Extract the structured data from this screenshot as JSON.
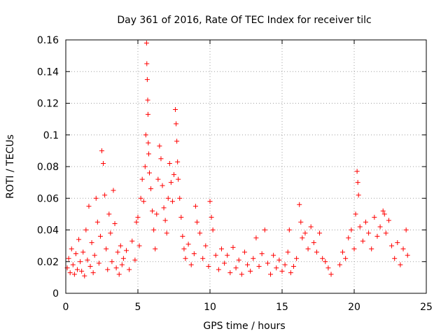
{
  "chart_data": {
    "type": "scatter",
    "title": "Day 361 of 2016, Rate Of TEC Index for receiver tilc",
    "xlabel": "GPS time / hours",
    "ylabel": "ROTI / TECUs",
    "xlim": [
      0,
      25
    ],
    "ylim": [
      0,
      0.16
    ],
    "xticks": [
      0,
      5,
      10,
      15,
      20,
      25
    ],
    "xtick_labels": [
      "0",
      "5",
      "10",
      "15",
      "20",
      "25"
    ],
    "yticks": [
      0,
      0.02,
      0.04,
      0.06,
      0.08,
      0.1,
      0.12,
      0.14,
      0.16
    ],
    "ytick_labels": [
      "0",
      "0.02",
      "0.04",
      "0.06",
      "0.08",
      "0.1",
      "0.12",
      "0.14",
      "0.16"
    ],
    "grid": true,
    "marker": "plus",
    "color": "#ff0000",
    "series": [
      {
        "name": "ROTI",
        "points": [
          [
            0.1,
            0.016
          ],
          [
            0.2,
            0.022
          ],
          [
            0.3,
            0.013
          ],
          [
            0.4,
            0.028
          ],
          [
            0.5,
            0.018
          ],
          [
            0.6,
            0.012
          ],
          [
            0.7,
            0.025
          ],
          [
            0.8,
            0.015
          ],
          [
            0.9,
            0.034
          ],
          [
            1.0,
            0.02
          ],
          [
            1.1,
            0.014
          ],
          [
            1.2,
            0.026
          ],
          [
            1.3,
            0.011
          ],
          [
            1.4,
            0.04
          ],
          [
            1.5,
            0.021
          ],
          [
            1.6,
            0.055
          ],
          [
            1.7,
            0.017
          ],
          [
            1.8,
            0.032
          ],
          [
            1.9,
            0.013
          ],
          [
            2.0,
            0.024
          ],
          [
            2.1,
            0.06
          ],
          [
            2.2,
            0.045
          ],
          [
            2.3,
            0.019
          ],
          [
            2.4,
            0.036
          ],
          [
            2.5,
            0.09
          ],
          [
            2.6,
            0.082
          ],
          [
            2.7,
            0.062
          ],
          [
            2.8,
            0.028
          ],
          [
            2.9,
            0.015
          ],
          [
            3.0,
            0.05
          ],
          [
            3.1,
            0.038
          ],
          [
            3.2,
            0.02
          ],
          [
            3.3,
            0.065
          ],
          [
            3.4,
            0.044
          ],
          [
            3.5,
            0.016
          ],
          [
            3.6,
            0.026
          ],
          [
            3.7,
            0.012
          ],
          [
            3.8,
            0.03
          ],
          [
            3.9,
            0.018
          ],
          [
            4.0,
            0.022
          ],
          [
            4.2,
            0.027
          ],
          [
            4.4,
            0.015
          ],
          [
            4.6,
            0.033
          ],
          [
            4.8,
            0.021
          ],
          [
            4.9,
            0.045
          ],
          [
            5.0,
            0.048
          ],
          [
            5.1,
            0.03
          ],
          [
            5.2,
            0.06
          ],
          [
            5.3,
            0.072
          ],
          [
            5.4,
            0.058
          ],
          [
            5.5,
            0.08
          ],
          [
            5.55,
            0.1
          ],
          [
            5.6,
            0.158
          ],
          [
            5.62,
            0.145
          ],
          [
            5.65,
            0.135
          ],
          [
            5.68,
            0.122
          ],
          [
            5.7,
            0.113
          ],
          [
            5.72,
            0.095
          ],
          [
            5.75,
            0.088
          ],
          [
            5.8,
            0.076
          ],
          [
            5.9,
            0.066
          ],
          [
            6.0,
            0.052
          ],
          [
            6.1,
            0.04
          ],
          [
            6.2,
            0.028
          ],
          [
            6.3,
            0.05
          ],
          [
            6.4,
            0.072
          ],
          [
            6.5,
            0.093
          ],
          [
            6.6,
            0.085
          ],
          [
            6.7,
            0.068
          ],
          [
            6.8,
            0.054
          ],
          [
            6.9,
            0.046
          ],
          [
            7.0,
            0.038
          ],
          [
            7.1,
            0.06
          ],
          [
            7.2,
            0.082
          ],
          [
            7.3,
            0.07
          ],
          [
            7.4,
            0.058
          ],
          [
            7.5,
            0.075
          ],
          [
            7.6,
            0.116
          ],
          [
            7.65,
            0.107
          ],
          [
            7.7,
            0.096
          ],
          [
            7.75,
            0.083
          ],
          [
            7.8,
            0.072
          ],
          [
            7.9,
            0.06
          ],
          [
            8.0,
            0.048
          ],
          [
            8.1,
            0.036
          ],
          [
            8.2,
            0.028
          ],
          [
            8.3,
            0.022
          ],
          [
            8.5,
            0.031
          ],
          [
            8.7,
            0.018
          ],
          [
            8.9,
            0.025
          ],
          [
            9.0,
            0.055
          ],
          [
            9.1,
            0.045
          ],
          [
            9.3,
            0.038
          ],
          [
            9.5,
            0.022
          ],
          [
            9.7,
            0.03
          ],
          [
            9.9,
            0.017
          ],
          [
            10.0,
            0.058
          ],
          [
            10.1,
            0.048
          ],
          [
            10.2,
            0.04
          ],
          [
            10.4,
            0.024
          ],
          [
            10.6,
            0.015
          ],
          [
            10.8,
            0.028
          ],
          [
            11.0,
            0.019
          ],
          [
            11.2,
            0.024
          ],
          [
            11.4,
            0.013
          ],
          [
            11.6,
            0.029
          ],
          [
            11.8,
            0.016
          ],
          [
            12.0,
            0.021
          ],
          [
            12.2,
            0.012
          ],
          [
            12.4,
            0.026
          ],
          [
            12.6,
            0.018
          ],
          [
            12.8,
            0.014
          ],
          [
            13.0,
            0.022
          ],
          [
            13.2,
            0.035
          ],
          [
            13.4,
            0.017
          ],
          [
            13.6,
            0.025
          ],
          [
            13.8,
            0.04
          ],
          [
            14.0,
            0.019
          ],
          [
            14.2,
            0.012
          ],
          [
            14.4,
            0.024
          ],
          [
            14.6,
            0.016
          ],
          [
            14.8,
            0.021
          ],
          [
            15.0,
            0.014
          ],
          [
            15.2,
            0.018
          ],
          [
            15.4,
            0.026
          ],
          [
            15.5,
            0.04
          ],
          [
            15.6,
            0.013
          ],
          [
            15.8,
            0.017
          ],
          [
            16.0,
            0.022
          ],
          [
            16.2,
            0.056
          ],
          [
            16.3,
            0.045
          ],
          [
            16.4,
            0.035
          ],
          [
            16.6,
            0.038
          ],
          [
            16.8,
            0.028
          ],
          [
            17.0,
            0.042
          ],
          [
            17.2,
            0.032
          ],
          [
            17.4,
            0.026
          ],
          [
            17.6,
            0.038
          ],
          [
            17.8,
            0.022
          ],
          [
            18.0,
            0.02
          ],
          [
            18.2,
            0.016
          ],
          [
            18.4,
            0.012
          ],
          [
            19.0,
            0.018
          ],
          [
            19.2,
            0.026
          ],
          [
            19.4,
            0.022
          ],
          [
            19.6,
            0.035
          ],
          [
            19.8,
            0.04
          ],
          [
            20.0,
            0.028
          ],
          [
            20.1,
            0.05
          ],
          [
            20.2,
            0.077
          ],
          [
            20.25,
            0.07
          ],
          [
            20.3,
            0.062
          ],
          [
            20.4,
            0.042
          ],
          [
            20.6,
            0.033
          ],
          [
            20.8,
            0.045
          ],
          [
            21.0,
            0.038
          ],
          [
            21.2,
            0.028
          ],
          [
            21.4,
            0.048
          ],
          [
            21.6,
            0.036
          ],
          [
            21.8,
            0.042
          ],
          [
            22.0,
            0.052
          ],
          [
            22.1,
            0.05
          ],
          [
            22.2,
            0.038
          ],
          [
            22.4,
            0.046
          ],
          [
            22.6,
            0.03
          ],
          [
            22.8,
            0.022
          ],
          [
            23.0,
            0.032
          ],
          [
            23.2,
            0.018
          ],
          [
            23.4,
            0.028
          ],
          [
            23.6,
            0.04
          ],
          [
            23.7,
            0.024
          ]
        ]
      }
    ]
  }
}
